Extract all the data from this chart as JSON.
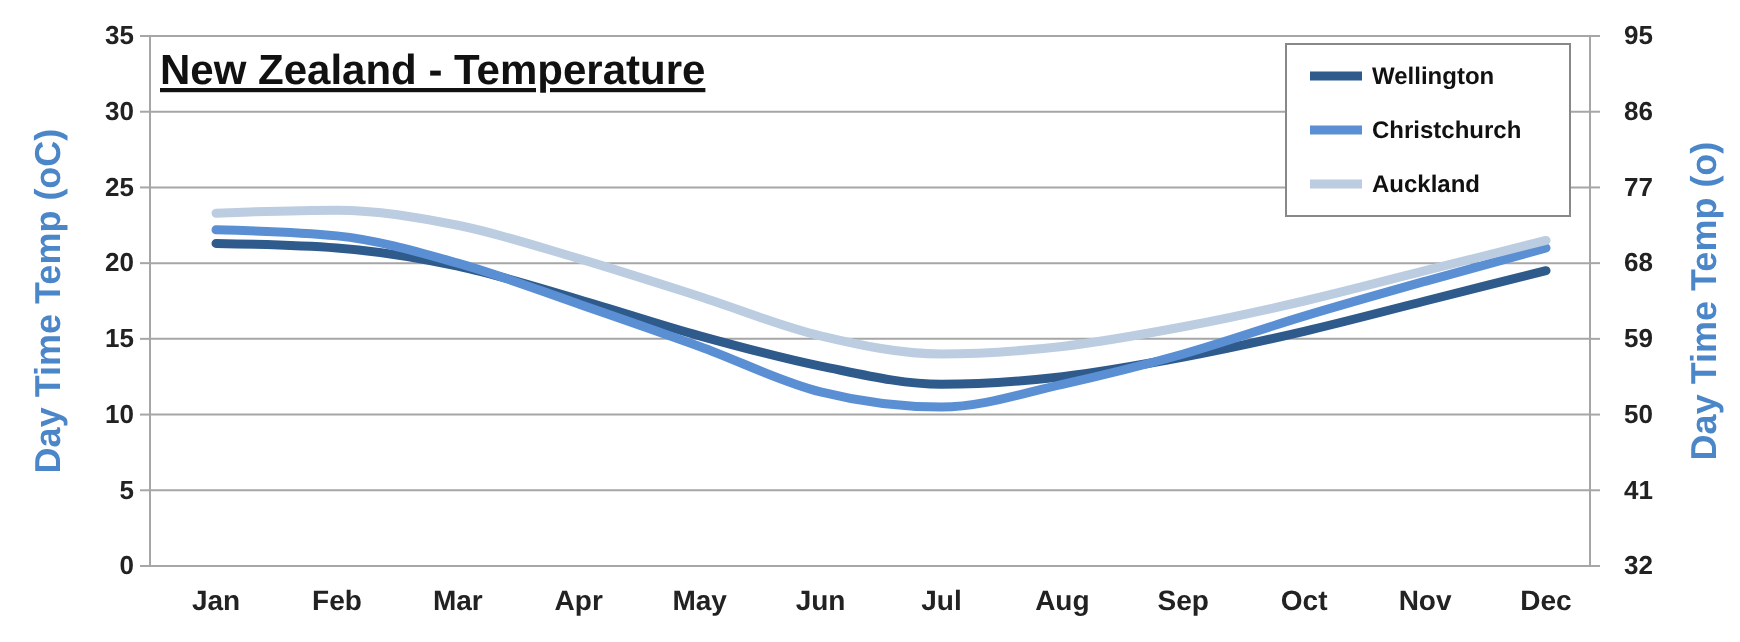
{
  "chart_data": {
    "type": "line",
    "title": "New Zealand - Temperature",
    "ylabel": "Day Time Temp (oC)",
    "y2label": "Day Time Temp (o)",
    "categories": [
      "Jan",
      "Feb",
      "Mar",
      "Apr",
      "May",
      "Jun",
      "Jul",
      "Aug",
      "Sep",
      "Oct",
      "Nov",
      "Dec"
    ],
    "series": [
      {
        "name": "Wellington",
        "color": "#2f5b8c",
        "values": [
          21.3,
          21,
          19.8,
          17.6,
          15.2,
          13.2,
          12,
          12.5,
          13.8,
          15.5,
          17.5,
          19.5
        ]
      },
      {
        "name": "Christchurch",
        "color": "#5b8fd4",
        "values": [
          22.2,
          21.8,
          20,
          17.3,
          14.5,
          11.5,
          10.5,
          12,
          14,
          16.5,
          18.8,
          21
        ]
      },
      {
        "name": "Auckland",
        "color": "#bccde2",
        "values": [
          23.3,
          23.5,
          22.5,
          20.3,
          17.8,
          15.2,
          14,
          14.5,
          15.8,
          17.5,
          19.5,
          21.5
        ]
      }
    ],
    "ylim": [
      0,
      35
    ],
    "yticks": [
      0,
      5,
      10,
      15,
      20,
      25,
      30,
      35
    ],
    "y2lim": [
      32,
      95
    ],
    "y2ticks": [
      32,
      41,
      50,
      59,
      68,
      77,
      86,
      95
    ],
    "grid": "y",
    "legend": "top right",
    "marker": "none",
    "line_style": "solid"
  }
}
